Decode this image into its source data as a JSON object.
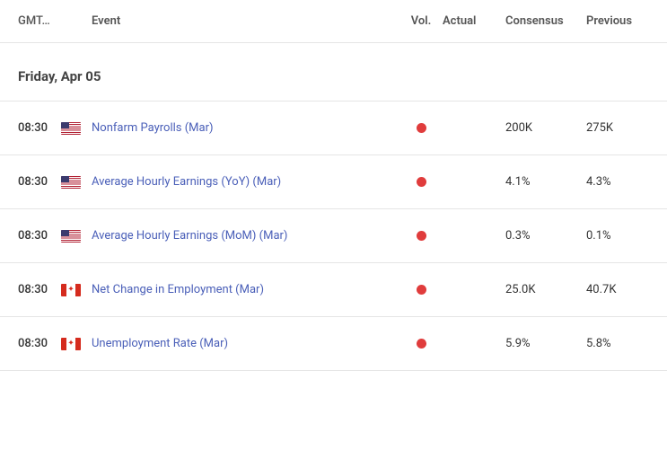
{
  "columns": {
    "time": "GMT…",
    "event": "Event",
    "vol": "Vol.",
    "actual": "Actual",
    "consensus": "Consensus",
    "previous": "Previous"
  },
  "date_header": "Friday, Apr 05",
  "vol_colors": {
    "high": "#e03c3c"
  },
  "link_color": "#4a5fb8",
  "events": [
    {
      "time": "08:30",
      "country": "us",
      "name": "Nonfarm Payrolls (Mar)",
      "vol": "high",
      "actual": "",
      "consensus": "200K",
      "previous": "275K"
    },
    {
      "time": "08:30",
      "country": "us",
      "name": "Average Hourly Earnings (YoY) (Mar)",
      "vol": "high",
      "actual": "",
      "consensus": "4.1%",
      "previous": "4.3%"
    },
    {
      "time": "08:30",
      "country": "us",
      "name": "Average Hourly Earnings (MoM) (Mar)",
      "vol": "high",
      "actual": "",
      "consensus": "0.3%",
      "previous": "0.1%"
    },
    {
      "time": "08:30",
      "country": "ca",
      "name": "Net Change in Employment (Mar)",
      "vol": "high",
      "actual": "",
      "consensus": "25.0K",
      "previous": "40.7K"
    },
    {
      "time": "08:30",
      "country": "ca",
      "name": "Unemployment Rate (Mar)",
      "vol": "high",
      "actual": "",
      "consensus": "5.9%",
      "previous": "5.8%"
    }
  ]
}
